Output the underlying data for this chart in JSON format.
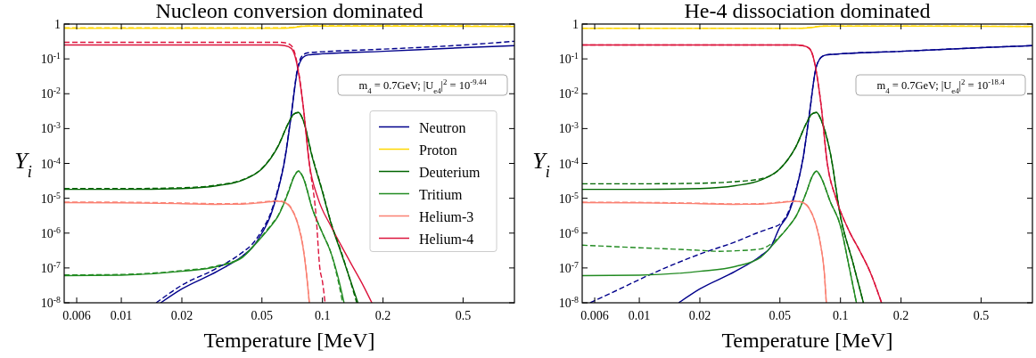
{
  "chart_data": [
    {
      "type": "line",
      "title": "Nucleon conversion dominated",
      "xlabel": "Temperature [MeV]",
      "ylabel": "Y$_{i}$",
      "log": "xy",
      "legend": "right",
      "grid": false,
      "xlim": [
        0.0052,
        0.9
      ],
      "ylim": [
        1e-08,
        1
      ],
      "xticks": [
        0.006,
        0.01,
        0.02,
        0.05,
        0.1,
        0.2,
        0.5
      ],
      "yticks": [
        {
          "value": 1e-08,
          "label": "10$^{-8}$"
        },
        {
          "value": 1e-07,
          "label": "10$^{-7}$"
        },
        {
          "value": 1e-06,
          "label": "10$^{-6}$"
        },
        {
          "value": 1e-05,
          "label": "10$^{-5}$"
        },
        {
          "value": 0.0001,
          "label": "10$^{-4}$"
        },
        {
          "value": 0.001,
          "label": "10$^{-3}$"
        },
        {
          "value": 0.01,
          "label": "10$^{-2}$"
        },
        {
          "value": 0.1,
          "label": "10$^{-1}$"
        },
        1
      ],
      "annotations": [
        "m$_{4}$ = 0.7GeV; |U$_{e4}$|$^{2}$ = 10$^{-9.44}$"
      ],
      "series": [
        {
          "name": "Neutron",
          "color": "#00008b",
          "line_style": "solid",
          "x": [
            0.0157,
            0.02,
            0.03,
            0.04,
            0.045,
            0.05,
            0.055,
            0.06,
            0.065,
            0.07,
            0.075,
            0.08,
            0.085,
            0.1,
            0.2,
            0.5,
            0.9
          ],
          "values": [
            1e-08,
            2.5e-08,
            8e-08,
            2.2e-07,
            4e-07,
            1e-06,
            3e-06,
            1.6e-05,
            0.00013,
            0.0025,
            0.045,
            0.11,
            0.13,
            0.14,
            0.165,
            0.21,
            0.24
          ]
        },
        {
          "name": "Proton",
          "color": "#ffd700",
          "line_style": "solid",
          "x": [
            0.0052,
            0.06,
            0.07,
            0.08,
            0.09,
            0.2,
            0.9
          ],
          "values": [
            0.75,
            0.75,
            0.78,
            0.86,
            0.87,
            0.87,
            0.85
          ]
        },
        {
          "name": "Deuterium",
          "color": "#006400",
          "line_style": "solid",
          "x": [
            0.0052,
            0.01,
            0.02,
            0.03,
            0.04,
            0.05,
            0.06,
            0.068,
            0.072,
            0.076,
            0.08,
            0.089,
            0.1,
            0.11,
            0.125,
            0.15
          ],
          "values": [
            1.8e-05,
            1.8e-05,
            1.9e-05,
            2.3e-05,
            3.3e-05,
            7e-05,
            0.0003,
            0.0015,
            0.0026,
            0.0029,
            0.0018,
            0.00015,
            1.5e-05,
            2e-06,
            2.3e-07,
            1e-08
          ]
        },
        {
          "name": "Tritium",
          "color": "#228b22",
          "line_style": "solid",
          "x": [
            0.0052,
            0.01,
            0.02,
            0.03,
            0.04,
            0.048,
            0.055,
            0.06,
            0.068,
            0.072,
            0.076,
            0.08,
            0.089,
            0.1,
            0.11,
            0.12,
            0.128
          ],
          "values": [
            6e-08,
            6.2e-08,
            8e-08,
            1.1e-07,
            2e-07,
            6e-07,
            1.5e-06,
            3e-06,
            1.6e-05,
            4e-05,
            6e-05,
            4e-05,
            5e-06,
            1e-06,
            2.8e-07,
            5e-08,
            1e-08
          ]
        },
        {
          "name": "Helium-3",
          "color": "#fa8072",
          "line_style": "solid",
          "x": [
            0.0052,
            0.01,
            0.02,
            0.03,
            0.04,
            0.05,
            0.06,
            0.065,
            0.07,
            0.075,
            0.08,
            0.083,
            0.086
          ],
          "values": [
            7.5e-06,
            7.4e-06,
            7e-06,
            6.7e-06,
            6.8e-06,
            7.5e-06,
            8.2e-06,
            7.5e-06,
            5e-06,
            2e-06,
            4e-07,
            8e-08,
            1e-08
          ]
        },
        {
          "name": "Helium-4",
          "color": "#dc143c",
          "line_style": "solid",
          "x": [
            0.0052,
            0.06,
            0.065,
            0.07,
            0.073,
            0.076,
            0.08,
            0.086,
            0.095,
            0.11,
            0.125,
            0.139,
            0.16,
            0.176
          ],
          "values": [
            0.25,
            0.25,
            0.24,
            0.2,
            0.12,
            0.04,
            0.005,
            0.0001,
            1e-05,
            1.6e-06,
            4e-07,
            1.3e-07,
            3e-08,
            1e-08
          ]
        },
        {
          "color": "#00008b",
          "line_style": "dashed",
          "x": [
            0.0149,
            0.02,
            0.03,
            0.04,
            0.045,
            0.05,
            0.055,
            0.06,
            0.065,
            0.07,
            0.075,
            0.08,
            0.085,
            0.1,
            0.2,
            0.5,
            0.9
          ],
          "values": [
            1e-08,
            3.2e-08,
            1e-07,
            2.8e-07,
            5e-07,
            1.2e-06,
            3.5e-06,
            1.8e-05,
            0.00014,
            0.0027,
            0.05,
            0.13,
            0.15,
            0.16,
            0.19,
            0.25,
            0.32
          ]
        },
        {
          "color": "#ffd700",
          "line_style": "dashed",
          "x": [
            0.0052,
            0.06,
            0.07,
            0.08,
            0.09,
            0.2,
            0.9
          ],
          "values": [
            0.78,
            0.78,
            0.8,
            0.88,
            0.89,
            0.89,
            0.88
          ]
        },
        {
          "color": "#006400",
          "line_style": "dashed",
          "x": [
            0.0052,
            0.01,
            0.02,
            0.03,
            0.04,
            0.05,
            0.06,
            0.068,
            0.072,
            0.076,
            0.08,
            0.089,
            0.1,
            0.11,
            0.125,
            0.148
          ],
          "values": [
            1.9e-05,
            1.9e-05,
            2e-05,
            2.4e-05,
            3.4e-05,
            7.2e-05,
            0.00031,
            0.0015,
            0.0026,
            0.0029,
            0.0018,
            0.00016,
            1.6e-05,
            2.1e-06,
            2.5e-07,
            1e-08
          ]
        },
        {
          "color": "#228b22",
          "line_style": "dashed",
          "x": [
            0.0052,
            0.01,
            0.02,
            0.03,
            0.04,
            0.048,
            0.055,
            0.06,
            0.068,
            0.072,
            0.076,
            0.08,
            0.089,
            0.1,
            0.11,
            0.12,
            0.126
          ],
          "values": [
            6.3e-08,
            6.5e-08,
            8.4e-08,
            1.15e-07,
            2.1e-07,
            6.3e-07,
            1.6e-06,
            3.1e-06,
            1.7e-05,
            4.1e-05,
            6.1e-05,
            4.1e-05,
            5.2e-06,
            1e-06,
            2.8e-07,
            4e-08,
            1e-08
          ]
        },
        {
          "color": "#fa8072",
          "line_style": "dashed",
          "x": [
            0.0052,
            0.01,
            0.02,
            0.03,
            0.04,
            0.05,
            0.06,
            0.065,
            0.07,
            0.075,
            0.08,
            0.083,
            0.086
          ],
          "values": [
            7.8e-06,
            7.7e-06,
            7.3e-06,
            7e-06,
            7.1e-06,
            7.8e-06,
            8.5e-06,
            7.8e-06,
            5.2e-06,
            2.1e-06,
            4.2e-07,
            8.5e-08,
            1e-08
          ]
        },
        {
          "color": "#dc143c",
          "line_style": "dashed",
          "x": [
            0.0052,
            0.06,
            0.065,
            0.07,
            0.073,
            0.076,
            0.08,
            0.086,
            0.093,
            0.097,
            0.1,
            0.103
          ],
          "values": [
            0.3,
            0.3,
            0.29,
            0.24,
            0.14,
            0.045,
            0.005,
            0.0001,
            3e-06,
            1e-07,
            4e-08,
            1e-08
          ]
        }
      ]
    },
    {
      "type": "line",
      "title": "He-4 dissociation dominated",
      "xlabel": "Temperature [MeV]",
      "ylabel": "Y$_{i}$",
      "log": "xy",
      "legend": false,
      "grid": false,
      "xlim": [
        0.0052,
        0.9
      ],
      "ylim": [
        1e-08,
        1
      ],
      "xticks": [
        0.006,
        0.01,
        0.02,
        0.05,
        0.1,
        0.2,
        0.5
      ],
      "yticks": [
        {
          "value": 1e-08,
          "label": "10$^{-8}$"
        },
        {
          "value": 1e-07,
          "label": "10$^{-7}$"
        },
        {
          "value": 1e-06,
          "label": "10$^{-6}$"
        },
        {
          "value": 1e-05,
          "label": "10$^{-5}$"
        },
        {
          "value": 0.0001,
          "label": "10$^{-4}$"
        },
        {
          "value": 0.001,
          "label": "10$^{-3}$"
        },
        {
          "value": 0.01,
          "label": "10$^{-2}$"
        },
        {
          "value": 0.1,
          "label": "10$^{-1}$"
        },
        1
      ],
      "annotations": [
        "m$_{4}$ = 0.7GeV; |U$_{e4}$|$^{2}$ = 10$^{-18.4}$"
      ],
      "series": [
        {
          "color": "#ffd700",
          "line_style": "dashed",
          "x": [
            0.0052,
            0.06,
            0.07,
            0.08,
            0.09,
            0.2,
            0.9
          ],
          "values": [
            0.76,
            0.76,
            0.79,
            0.87,
            0.88,
            0.88,
            0.86
          ]
        },
        {
          "color": "#fa8072",
          "line_style": "dashed",
          "x": [
            0.0052,
            0.01,
            0.02,
            0.03,
            0.04,
            0.05,
            0.06,
            0.065,
            0.07,
            0.075,
            0.08,
            0.083,
            0.085
          ],
          "values": [
            7.7e-06,
            7.6e-06,
            7.2e-06,
            6.9e-06,
            7e-06,
            7.7e-06,
            8.4e-06,
            7.7e-06,
            5.1e-06,
            2e-06,
            4e-07,
            8e-08,
            1e-08
          ]
        },
        {
          "color": "#dc143c",
          "line_style": "dashed",
          "x": [
            0.0052,
            0.06,
            0.065,
            0.07,
            0.073,
            0.076,
            0.08,
            0.086,
            0.095,
            0.11,
            0.125,
            0.14,
            0.16
          ],
          "values": [
            0.25,
            0.25,
            0.24,
            0.2,
            0.12,
            0.04,
            0.005,
            0.0001,
            1e-05,
            1.2e-06,
            3e-07,
            8e-08,
            1e-08
          ]
        },
        {
          "color": "#00008b",
          "line_style": "dashed",
          "x": [
            0.0057,
            0.008,
            0.011,
            0.02,
            0.03,
            0.04,
            0.045,
            0.05,
            0.055,
            0.06,
            0.065,
            0.07,
            0.075,
            0.08,
            0.085,
            0.1,
            0.2,
            0.5,
            0.9
          ],
          "values": [
            1e-08,
            2.5e-08,
            6e-08,
            2.5e-07,
            5.6e-07,
            1.1e-06,
            1.4e-06,
            1.8e-06,
            4e-06,
            1.8e-05,
            0.00013,
            0.0025,
            0.045,
            0.11,
            0.13,
            0.14,
            0.165,
            0.21,
            0.24
          ]
        },
        {
          "color": "#006400",
          "line_style": "dashed",
          "x": [
            0.0052,
            0.01,
            0.02,
            0.03,
            0.04,
            0.05,
            0.06,
            0.068,
            0.072,
            0.076,
            0.08,
            0.089,
            0.1,
            0.115,
            0.13
          ],
          "values": [
            2.6e-05,
            2.6e-05,
            2.7e-05,
            3e-05,
            3.6e-05,
            7e-05,
            0.0003,
            0.0015,
            0.0026,
            0.0029,
            0.0018,
            0.0002,
            3e-06,
            1.5e-07,
            1e-08
          ]
        },
        {
          "color": "#228b22",
          "line_style": "dashed",
          "x": [
            0.0052,
            0.01,
            0.02,
            0.025,
            0.03,
            0.04,
            0.048,
            0.055,
            0.06,
            0.068,
            0.072,
            0.076,
            0.08,
            0.089,
            0.1,
            0.11,
            0.12
          ],
          "values": [
            4.5e-07,
            3.8e-07,
            3.2e-07,
            3e-07,
            3.1e-07,
            3.5e-07,
            6.5e-07,
            1.5e-06,
            3e-06,
            1.6e-05,
            4e-05,
            6e-05,
            4e-05,
            8e-06,
            1.6e-06,
            1.2e-07,
            1e-08
          ]
        },
        {
          "color": "#00008b",
          "line_style": "solid",
          "x": [
            0.0157,
            0.02,
            0.03,
            0.04,
            0.045,
            0.05,
            0.055,
            0.06,
            0.065,
            0.07,
            0.075,
            0.08,
            0.085,
            0.1,
            0.2,
            0.5,
            0.9
          ],
          "values": [
            1e-08,
            2.5e-08,
            8e-08,
            2.2e-07,
            4e-07,
            1.5e-06,
            3.5e-06,
            1.6e-05,
            0.00013,
            0.0025,
            0.045,
            0.11,
            0.13,
            0.14,
            0.165,
            0.21,
            0.24
          ]
        },
        {
          "color": "#ffd700",
          "line_style": "solid",
          "x": [
            0.0052,
            0.06,
            0.07,
            0.08,
            0.09,
            0.2,
            0.9
          ],
          "values": [
            0.75,
            0.75,
            0.78,
            0.86,
            0.87,
            0.87,
            0.85
          ]
        },
        {
          "color": "#006400",
          "line_style": "solid",
          "x": [
            0.0052,
            0.01,
            0.02,
            0.03,
            0.04,
            0.05,
            0.06,
            0.068,
            0.072,
            0.076,
            0.08,
            0.089,
            0.1,
            0.115,
            0.13
          ],
          "values": [
            1.8e-05,
            1.8e-05,
            1.9e-05,
            2.3e-05,
            3.3e-05,
            7e-05,
            0.0003,
            0.0015,
            0.0026,
            0.0029,
            0.0018,
            0.0002,
            3e-06,
            1.5e-07,
            1e-08
          ]
        },
        {
          "color": "#228b22",
          "line_style": "solid",
          "x": [
            0.0052,
            0.01,
            0.02,
            0.03,
            0.04,
            0.048,
            0.055,
            0.06,
            0.068,
            0.072,
            0.076,
            0.08,
            0.089,
            0.1,
            0.11,
            0.12
          ],
          "values": [
            6e-08,
            6.2e-08,
            8e-08,
            1.1e-07,
            2e-07,
            6e-07,
            1.5e-06,
            3e-06,
            1.6e-05,
            4e-05,
            6e-05,
            4e-05,
            8e-06,
            1.6e-06,
            1.2e-07,
            1e-08
          ]
        },
        {
          "color": "#fa8072",
          "line_style": "solid",
          "x": [
            0.0052,
            0.01,
            0.02,
            0.03,
            0.04,
            0.05,
            0.06,
            0.065,
            0.07,
            0.075,
            0.08,
            0.083,
            0.085
          ],
          "values": [
            7.5e-06,
            7.4e-06,
            7e-06,
            6.7e-06,
            6.8e-06,
            7.5e-06,
            8.2e-06,
            7.5e-06,
            5e-06,
            2e-06,
            4e-07,
            8e-08,
            1e-08
          ]
        },
        {
          "color": "#dc143c",
          "line_style": "solid",
          "x": [
            0.0052,
            0.06,
            0.065,
            0.07,
            0.073,
            0.076,
            0.08,
            0.086,
            0.095,
            0.11,
            0.125,
            0.14,
            0.16
          ],
          "values": [
            0.25,
            0.25,
            0.24,
            0.2,
            0.12,
            0.04,
            0.005,
            0.0001,
            1e-05,
            1.2e-06,
            3e-07,
            8e-08,
            1e-08
          ]
        }
      ]
    }
  ]
}
